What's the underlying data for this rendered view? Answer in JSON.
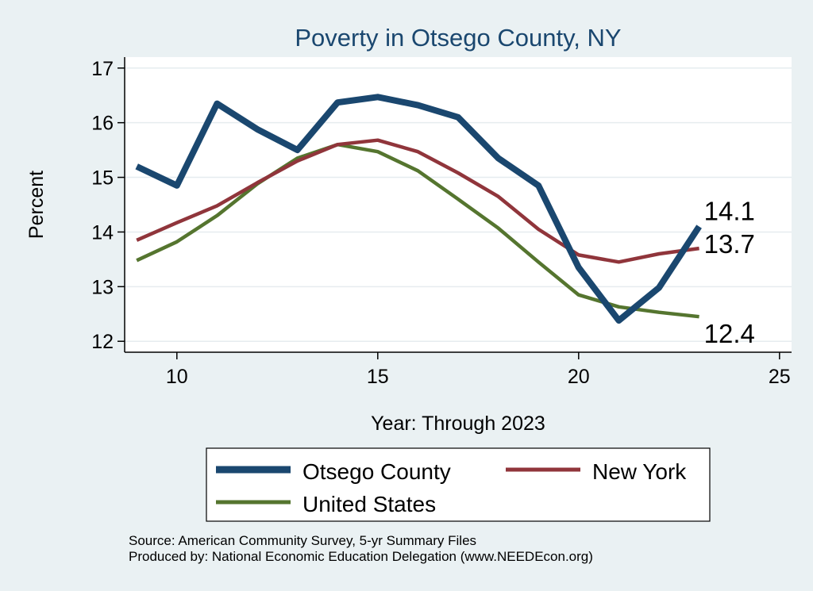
{
  "chart_data": {
    "type": "line",
    "title": "Poverty in Otsego County, NY",
    "xlabel": "Year: Through 2023",
    "ylabel": "Percent",
    "xlim": [
      8.7,
      25.3
    ],
    "ylim": [
      11.8,
      17.2
    ],
    "x_ticks": [
      10,
      15,
      20,
      25
    ],
    "y_ticks": [
      12,
      13,
      14,
      15,
      16,
      17
    ],
    "grid": "horizontal",
    "legend_position": "bottom",
    "x": [
      9,
      10,
      11,
      12,
      13,
      14,
      15,
      16,
      17,
      18,
      19,
      20,
      21,
      22,
      23
    ],
    "series": [
      {
        "name": "Otsego County",
        "color": "#1a476f",
        "end_label": "14.1",
        "values": [
          15.2,
          14.85,
          16.35,
          15.88,
          15.5,
          16.37,
          16.47,
          16.32,
          16.1,
          15.35,
          14.85,
          13.35,
          12.38,
          12.98,
          14.1
        ]
      },
      {
        "name": "New York",
        "color": "#90353b",
        "end_label": "13.7",
        "values": [
          13.85,
          14.17,
          14.48,
          14.9,
          15.3,
          15.6,
          15.68,
          15.47,
          15.08,
          14.65,
          14.05,
          13.58,
          13.45,
          13.6,
          13.7
        ]
      },
      {
        "name": "United States",
        "color": "#55752f",
        "end_label": "12.4",
        "values": [
          13.48,
          13.82,
          14.3,
          14.88,
          15.35,
          15.6,
          15.47,
          15.12,
          14.6,
          14.07,
          13.45,
          12.85,
          12.63,
          12.53,
          12.45
        ]
      }
    ]
  },
  "footer": {
    "source": "Source: American Community Survey, 5-yr Summary Files",
    "producer": "Produced by: National Economic Education Delegation (www.NEEDEcon.org)"
  }
}
